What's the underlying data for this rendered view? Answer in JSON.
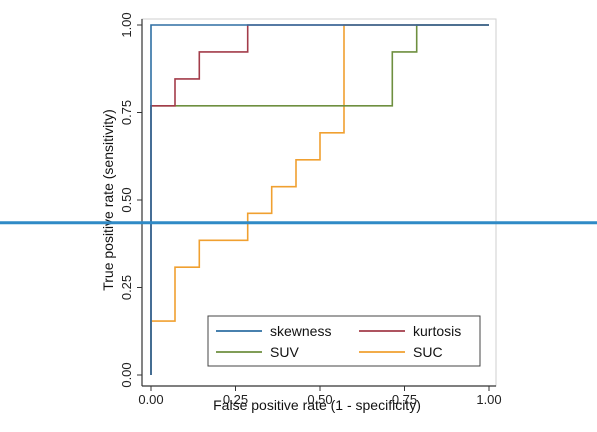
{
  "chart_data": {
    "type": "line",
    "xlabel": "False positive rate (1 - specificity)",
    "ylabel": "True positive rate (sensitivity)",
    "xlim": [
      0,
      1
    ],
    "ylim": [
      0,
      1
    ],
    "xticks": [
      "0.00",
      "0.25",
      "0.50",
      "0.75",
      "1.00"
    ],
    "yticks": [
      "0.00",
      "0.25",
      "0.50",
      "0.75",
      "1.00"
    ],
    "grid": false,
    "legend_position": "bottom-right",
    "series": [
      {
        "name": "skewness",
        "color": "#2e6fa3",
        "x": [
          0,
          0,
          1
        ],
        "y": [
          0,
          1,
          1
        ]
      },
      {
        "name": "kurtosis",
        "color": "#a33c4a",
        "x": [
          0,
          0,
          0.071,
          0.071,
          0.143,
          0.143,
          0.286,
          0.286,
          1
        ],
        "y": [
          0,
          0.769,
          0.769,
          0.846,
          0.846,
          0.923,
          0.923,
          1,
          1
        ]
      },
      {
        "name": "SUV",
        "color": "#6e8f3f",
        "x": [
          0,
          0,
          0.714,
          0.714,
          0.786,
          0.786,
          1
        ],
        "y": [
          0,
          0.769,
          0.769,
          0.923,
          0.923,
          1,
          1
        ]
      },
      {
        "name": "SUC",
        "color": "#f0a030",
        "x": [
          0,
          0,
          0.071,
          0.071,
          0.143,
          0.143,
          0.286,
          0.286,
          0.357,
          0.357,
          0.429,
          0.429,
          0.5,
          0.5,
          0.571,
          0.571,
          1
        ],
        "y": [
          0,
          0.154,
          0.154,
          0.308,
          0.308,
          0.385,
          0.385,
          0.462,
          0.462,
          0.538,
          0.538,
          0.615,
          0.615,
          0.692,
          0.692,
          1,
          1
        ]
      }
    ],
    "overlay": {
      "orientation": "horizontal",
      "y_value": 0.435,
      "color": "#2f8ac6"
    }
  }
}
